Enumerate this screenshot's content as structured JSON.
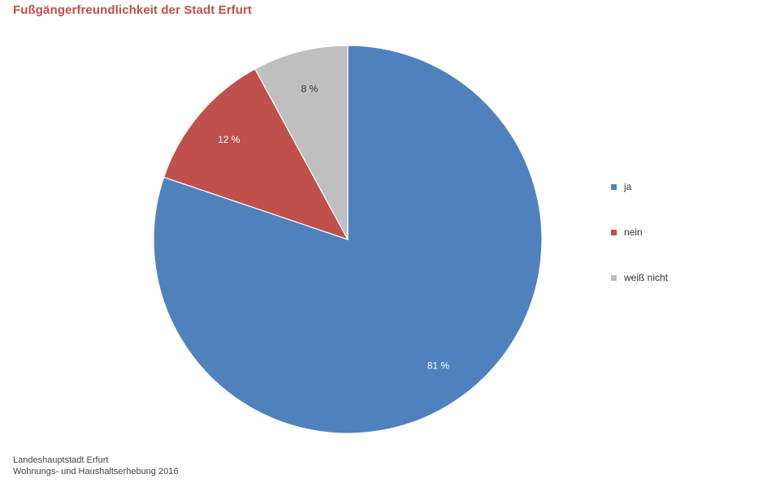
{
  "chart_data": {
    "type": "pie",
    "title": "Fußgängerfreundlichkeit der Stadt Erfurt",
    "categories": [
      "ja",
      "nein",
      "weiß nicht"
    ],
    "values": [
      81,
      12,
      8
    ],
    "data_labels": [
      "81 %",
      "12 %",
      "8 %"
    ],
    "colors": [
      "#4f81bd",
      "#c0504d",
      "#bfbfbf"
    ],
    "legend_position": "right",
    "start_angle": "12 o'clock, clockwise"
  },
  "footer": {
    "source_line1": "Landeshauptstadt Erfurt",
    "source_line2": "Wohnungs- und Haushaltserhebung 2016"
  }
}
